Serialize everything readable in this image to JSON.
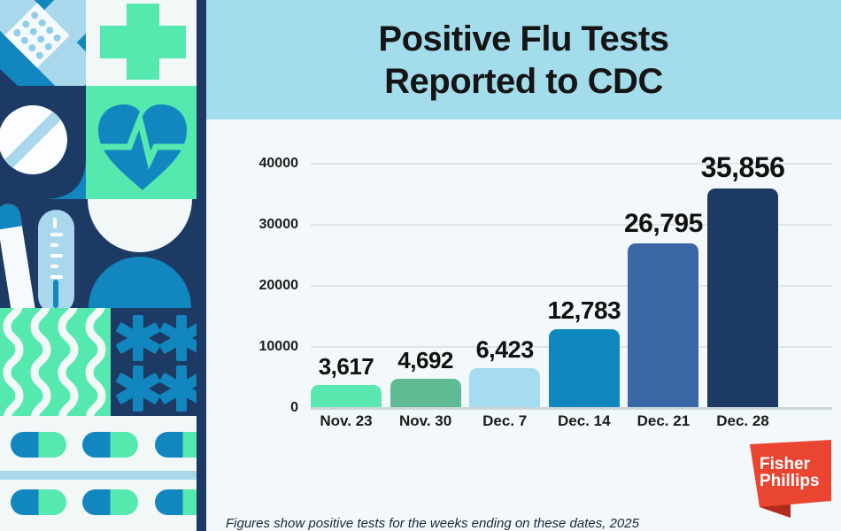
{
  "title": {
    "line1": "Positive Flu Tests",
    "line2": "Reported to CDC"
  },
  "footnote": "Figures show positive tests for the weeks ending on these dates, 2025",
  "logo": {
    "line1": "Fisher",
    "line2": "Phillips",
    "color": "#E94531",
    "fold_color": "#B22A1B"
  },
  "sidebar": {
    "icons": [
      "bandage",
      "medical-cross",
      "pill-tablet",
      "heart-ekg",
      "thermometers",
      "capsule-halves",
      "waves",
      "asterisks",
      "pill-capsules"
    ]
  },
  "colors": {
    "header_bg": "#A3DCEB",
    "content_bg": "#F3F8FA",
    "navy": "#1C3A63",
    "medium_blue": "#1286BE",
    "light_blue": "#A9D7EB",
    "mint": "#55E8AF",
    "off_white": "#F2F7F8",
    "gridline": "#DEE5E9"
  },
  "chart_data": {
    "type": "bar",
    "title": "Positive Flu Tests Reported to CDC",
    "categories": [
      "Nov. 23",
      "Nov. 30",
      "Dec. 7",
      "Dec. 14",
      "Dec. 21",
      "Dec. 28"
    ],
    "values": [
      3617,
      4692,
      6423,
      12783,
      26795,
      35856
    ],
    "value_labels": [
      "3,617",
      "4,692",
      "6,423",
      "12,783",
      "26,795",
      "35,856"
    ],
    "bar_colors": [
      "#5BE8B0",
      "#5EBB93",
      "#A6DCF0",
      "#0E87BF",
      "#3A68A7",
      "#1C3A63"
    ],
    "y_ticks": [
      0,
      10000,
      20000,
      30000,
      40000
    ],
    "ylim": [
      0,
      40000
    ],
    "grid": true,
    "legend": "none",
    "xlabel": "",
    "ylabel": ""
  }
}
